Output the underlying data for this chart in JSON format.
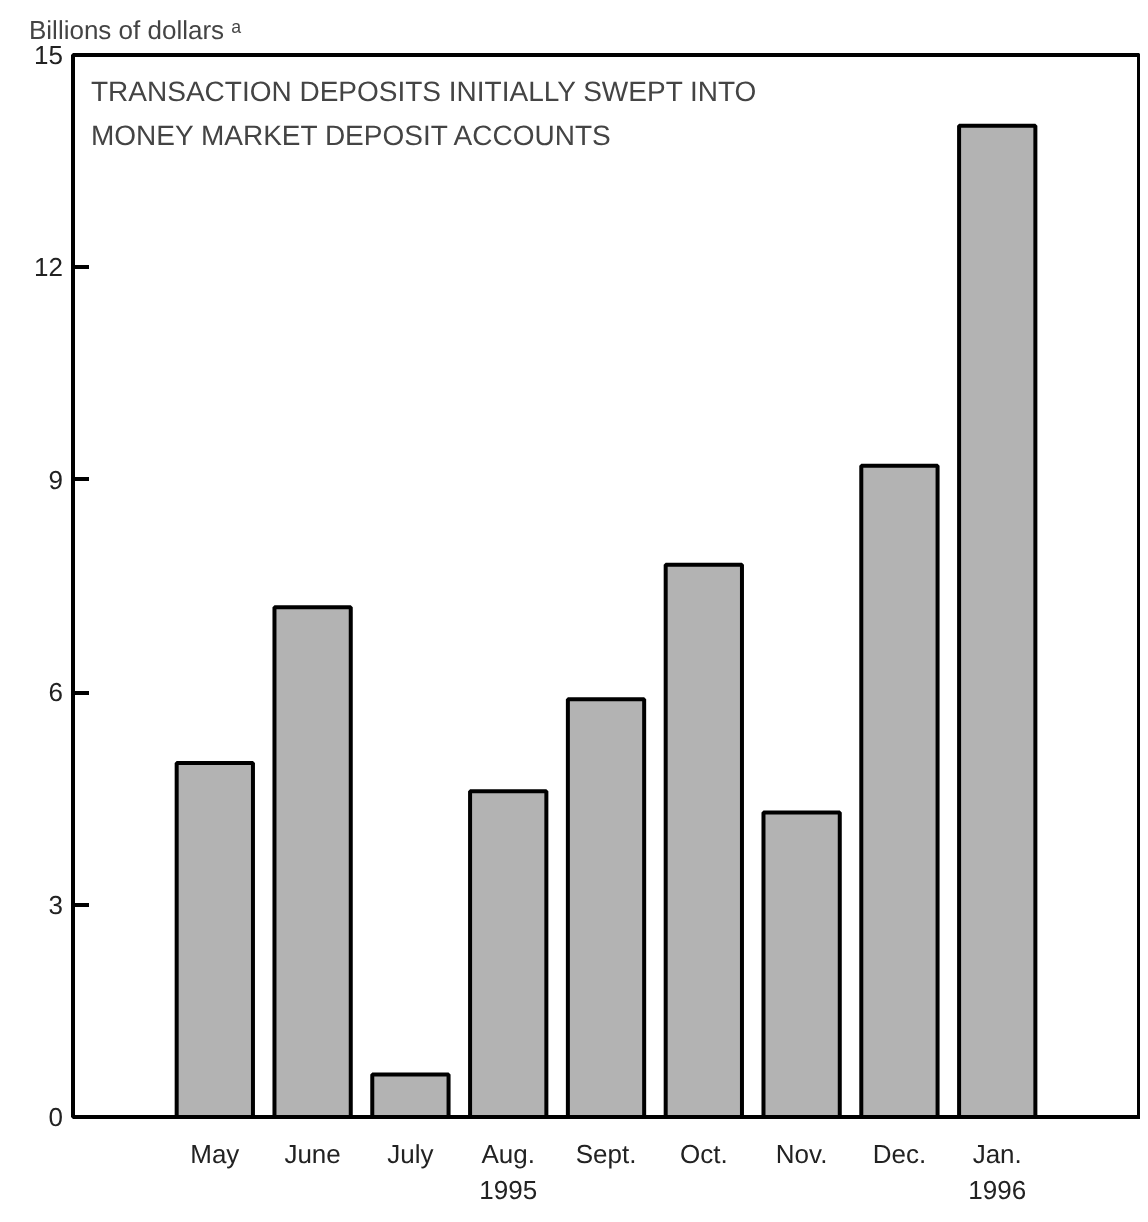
{
  "chart_data": {
    "type": "bar",
    "title": "TRANSACTION DEPOSITS INITIALLY SWEPT INTO\nMONEY MARKET DEPOSIT ACCOUNTS",
    "ylabel": "Billions of dollars ᵃ",
    "categories": [
      "May",
      "June",
      "July",
      "Aug.\n1995",
      "Sept.",
      "Oct.",
      "Nov.",
      "Dec.",
      "Jan.\n1996"
    ],
    "values": [
      5.0,
      7.2,
      0.6,
      4.6,
      5.9,
      7.8,
      4.3,
      9.2,
      14.0
    ],
    "color": "#b3b3b3",
    "ylim": [
      0,
      15
    ],
    "yticks": [
      0,
      3,
      6,
      9,
      12,
      15
    ],
    "grid": false
  }
}
